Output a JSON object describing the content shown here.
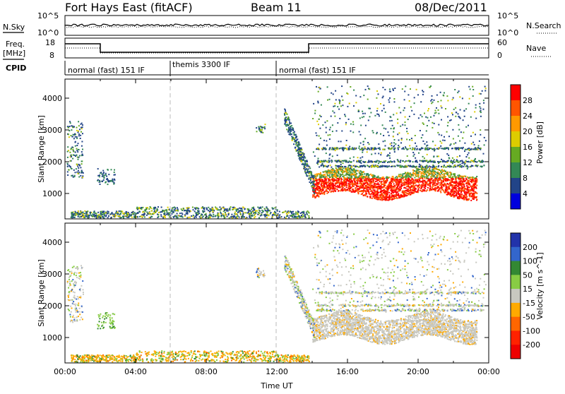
{
  "header": {
    "station": "Fort Hays East (fitACF)",
    "beam": "Beam 11",
    "date": "08/Dec/2011"
  },
  "top_panels": {
    "nsky_label": "N.Sky",
    "nsearch_label": "N.Search",
    "nsky_ticks": [
      "10^5",
      "10^0"
    ],
    "nsearch_ticks": [
      "10^5",
      "10^0"
    ],
    "freq_label_top": "Freq.",
    "freq_label_unit": "[MHz]",
    "freq_ticks": [
      "18",
      "8"
    ],
    "nave_label": "Nave",
    "nave_ticks": [
      "60",
      "0"
    ],
    "cpid_label": "CPID",
    "cpid_segments": [
      "normal (fast) 151 IF",
      "themis 3300 IF",
      "normal (fast) 151 IF"
    ]
  },
  "chart_data": [
    {
      "type": "heatmap",
      "title": "",
      "ylabel": "Slant Range [km]",
      "xlabel": "",
      "x_range_hours": [
        0,
        24
      ],
      "ylim": [
        200,
        4600
      ],
      "yticks": [
        "1000",
        "2000",
        "3000",
        "4000"
      ],
      "colorbar": {
        "label": "Power [dB]",
        "ticks": [
          "28",
          "24",
          "20",
          "16",
          "12",
          "8",
          "4"
        ],
        "colors": [
          "#ff0000",
          "#ff5500",
          "#ff9900",
          "#ddcc00",
          "#66aa22",
          "#338855",
          "#224488",
          "#0000dd"
        ]
      },
      "features": [
        {
          "region": "intense band 1000-1800 km",
          "x_start": 14.0,
          "x_end": 23.2,
          "power_db": 28
        },
        {
          "region": "near-range echoes",
          "x_start": 0.3,
          "x_end": 13.8,
          "range_km": [
            250,
            600
          ],
          "power_db": 8
        },
        {
          "region": "high-range scatter",
          "x_start": 14.0,
          "x_end": 23.8,
          "range_km": [
            1800,
            4400
          ],
          "power_db": 12
        }
      ]
    },
    {
      "type": "heatmap",
      "title": "",
      "ylabel": "Slant Range [km]",
      "xlabel": "Time UT",
      "x_range_hours": [
        0,
        24
      ],
      "ylim": [
        200,
        4600
      ],
      "yticks": [
        "1000",
        "2000",
        "3000",
        "4000"
      ],
      "xticks": [
        "00:00",
        "04:00",
        "08:00",
        "12:00",
        "16:00",
        "20:00",
        "00:00"
      ],
      "colorbar": {
        "label": "Velocity [m s^-1]",
        "ticks": [
          "200",
          "100",
          "50",
          "15",
          "-15",
          "-50",
          "-100",
          "-200"
        ],
        "colors": [
          "#2233aa",
          "#3366cc",
          "#338833",
          "#88cc44",
          "#c8c8c0",
          "#ffaa00",
          "#ff6600",
          "#ff2200",
          "#ee0000"
        ]
      },
      "features": [
        {
          "region": "ground scatter band 1000-1800 km",
          "x_start": 14.0,
          "x_end": 23.2,
          "velocity_ms": 0
        },
        {
          "region": "near-range echoes",
          "x_start": 0.3,
          "x_end": 13.8,
          "range_km": [
            250,
            600
          ],
          "velocity_ms": -50
        },
        {
          "region": "positive velocity patch",
          "x_start": 1.8,
          "x_end": 2.8,
          "range_km": [
            1400,
            1800
          ],
          "velocity_ms": 50
        }
      ]
    }
  ]
}
